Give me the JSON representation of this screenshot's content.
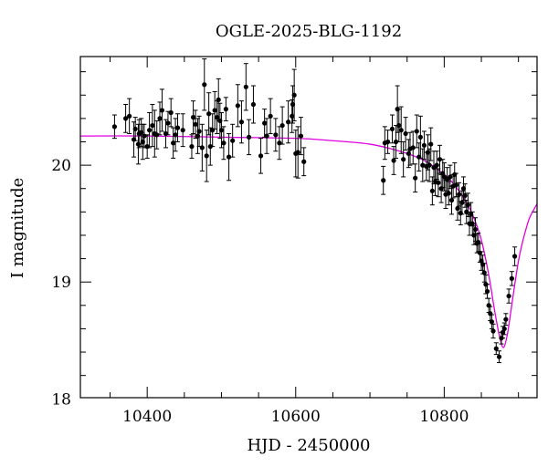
{
  "chart_data": {
    "type": "scatter",
    "title": "OGLE-2025-BLG-1192",
    "xlabel": "HJD - 2450000",
    "ylabel": "I magnitude",
    "xlim": [
      10310,
      10925
    ],
    "ylim": [
      20.93,
      18.01
    ],
    "y_inverted": true,
    "x_ticks": [
      10400,
      10600,
      10800
    ],
    "y_ticks": [
      18,
      19,
      20
    ],
    "x_minor_step": 50,
    "y_minor_step": 0.2,
    "grid": false,
    "legend": "none",
    "point_color": "#000000",
    "model_color": "#e000e0",
    "series": [
      {
        "kind": "points",
        "points": [
          [
            10356,
            20.33,
            0.1
          ],
          [
            10371,
            20.4,
            0.12
          ],
          [
            10376,
            20.42,
            0.15
          ],
          [
            10382,
            20.22,
            0.15
          ],
          [
            10384,
            20.31,
            0.1
          ],
          [
            10388,
            20.18,
            0.17
          ],
          [
            10389,
            20.27,
            0.12
          ],
          [
            10392,
            20.28,
            0.12
          ],
          [
            10394,
            20.2,
            0.15
          ],
          [
            10396,
            20.25,
            0.1
          ],
          [
            10400,
            20.16,
            0.1
          ],
          [
            10403,
            20.3,
            0.15
          ],
          [
            10407,
            20.34,
            0.18
          ],
          [
            10410,
            20.27,
            0.2
          ],
          [
            10413,
            20.26,
            0.12
          ],
          [
            10417,
            20.4,
            0.14
          ],
          [
            10420,
            20.47,
            0.18
          ],
          [
            10425,
            20.27,
            0.12
          ],
          [
            10428,
            20.36,
            0.1
          ],
          [
            10432,
            20.45,
            0.12
          ],
          [
            10435,
            20.19,
            0.13
          ],
          [
            10438,
            20.26,
            0.14
          ],
          [
            10441,
            20.32,
            0.12
          ],
          [
            10448,
            20.3,
            0.14
          ],
          [
            10460,
            20.16,
            0.1
          ],
          [
            10462,
            20.41,
            0.14
          ],
          [
            10465,
            20.35,
            0.12
          ],
          [
            10468,
            20.25,
            0.15
          ],
          [
            10470,
            20.29,
            0.13
          ],
          [
            10474,
            20.15,
            0.2
          ],
          [
            10477,
            20.69,
            0.22
          ],
          [
            10480,
            20.08,
            0.22
          ],
          [
            10483,
            20.44,
            0.18
          ],
          [
            10485,
            20.16,
            0.16
          ],
          [
            10488,
            20.3,
            0.14
          ],
          [
            10491,
            20.47,
            0.16
          ],
          [
            10494,
            20.41,
            0.14
          ],
          [
            10496,
            20.56,
            0.18
          ],
          [
            10498,
            20.38,
            0.15
          ],
          [
            10500,
            20.3,
            0.15
          ],
          [
            10503,
            20.19,
            0.14
          ],
          [
            10506,
            20.48,
            0.1
          ],
          [
            10510,
            20.07,
            0.2
          ],
          [
            10515,
            20.21,
            0.14
          ],
          [
            10522,
            20.51,
            0.18
          ],
          [
            10527,
            20.37,
            0.18
          ],
          [
            10533,
            20.67,
            0.2
          ],
          [
            10537,
            20.24,
            0.15
          ],
          [
            10543,
            20.52,
            0.16
          ],
          [
            10553,
            20.08,
            0.15
          ],
          [
            10558,
            20.36,
            0.12
          ],
          [
            10561,
            20.25,
            0.15
          ],
          [
            10566,
            20.42,
            0.15
          ],
          [
            10573,
            20.26,
            0.14
          ],
          [
            10578,
            20.19,
            0.14
          ],
          [
            10582,
            20.34,
            0.16
          ],
          [
            10590,
            20.37,
            0.18
          ],
          [
            10595,
            20.42,
            0.14
          ],
          [
            10596,
            20.52,
            0.16
          ],
          [
            10598,
            20.6,
            0.22
          ],
          [
            10600,
            20.1,
            0.2
          ],
          [
            10603,
            20.11,
            0.22
          ],
          [
            10607,
            20.25,
            0.16
          ],
          [
            10611,
            20.03,
            0.12
          ],
          [
            10718,
            19.87,
            0.12
          ],
          [
            10720,
            20.19,
            0.14
          ],
          [
            10724,
            20.2,
            0.1
          ],
          [
            10730,
            20.31,
            0.12
          ],
          [
            10732,
            20.04,
            0.12
          ],
          [
            10735,
            20.2,
            0.14
          ],
          [
            10737,
            20.48,
            0.2
          ],
          [
            10739,
            20.34,
            0.14
          ],
          [
            10742,
            20.3,
            0.2
          ],
          [
            10745,
            20.05,
            0.15
          ],
          [
            10748,
            20.27,
            0.14
          ],
          [
            10752,
            20.1,
            0.12
          ],
          [
            10754,
            20.14,
            0.14
          ],
          [
            10758,
            20.15,
            0.14
          ],
          [
            10761,
            19.89,
            0.12
          ],
          [
            10763,
            20.29,
            0.14
          ],
          [
            10766,
            20.07,
            0.12
          ],
          [
            10768,
            20.24,
            0.18
          ],
          [
            10771,
            20.0,
            0.14
          ],
          [
            10773,
            20.17,
            0.12
          ],
          [
            10776,
            19.99,
            0.12
          ],
          [
            10778,
            20.11,
            0.15
          ],
          [
            10780,
            20.0,
            0.14
          ],
          [
            10782,
            20.18,
            0.14
          ],
          [
            10784,
            19.78,
            0.12
          ],
          [
            10786,
            19.98,
            0.14
          ],
          [
            10788,
            19.86,
            0.12
          ],
          [
            10790,
            20.0,
            0.12
          ],
          [
            10792,
            19.85,
            0.12
          ],
          [
            10794,
            20.05,
            0.12
          ],
          [
            10796,
            19.8,
            0.12
          ],
          [
            10798,
            19.93,
            0.12
          ],
          [
            10800,
            19.9,
            0.12
          ],
          [
            10802,
            19.75,
            0.12
          ],
          [
            10804,
            19.88,
            0.1
          ],
          [
            10806,
            19.76,
            0.1
          ],
          [
            10808,
            19.9,
            0.1
          ],
          [
            10810,
            19.7,
            0.12
          ],
          [
            10812,
            19.82,
            0.1
          ],
          [
            10814,
            19.92,
            0.1
          ],
          [
            10816,
            19.83,
            0.1
          ],
          [
            10818,
            19.63,
            0.1
          ],
          [
            10820,
            19.75,
            0.1
          ],
          [
            10822,
            19.59,
            0.1
          ],
          [
            10824,
            19.68,
            0.1
          ],
          [
            10826,
            19.8,
            0.1
          ],
          [
            10828,
            19.74,
            0.1
          ],
          [
            10830,
            19.6,
            0.1
          ],
          [
            10832,
            19.66,
            0.1
          ],
          [
            10834,
            19.5,
            0.1
          ],
          [
            10836,
            19.58,
            0.1
          ],
          [
            10838,
            19.5,
            0.1
          ],
          [
            10840,
            19.4,
            0.08
          ],
          [
            10842,
            19.45,
            0.1
          ],
          [
            10844,
            19.33,
            0.08
          ],
          [
            10846,
            19.34,
            0.08
          ],
          [
            10848,
            19.25,
            0.08
          ],
          [
            10850,
            19.18,
            0.08
          ],
          [
            10852,
            19.15,
            0.08
          ],
          [
            10854,
            19.08,
            0.08
          ],
          [
            10856,
            18.98,
            0.08
          ],
          [
            10858,
            18.92,
            0.06
          ],
          [
            10860,
            18.8,
            0.06
          ],
          [
            10862,
            18.73,
            0.06
          ],
          [
            10864,
            18.66,
            0.06
          ],
          [
            10866,
            18.58,
            0.06
          ],
          [
            10870,
            18.43,
            0.05
          ],
          [
            10874,
            18.36,
            0.05
          ],
          [
            10877,
            18.52,
            0.05
          ],
          [
            10879,
            18.57,
            0.05
          ],
          [
            10881,
            18.6,
            0.05
          ],
          [
            10883,
            18.68,
            0.05
          ],
          [
            10887,
            18.88,
            0.06
          ],
          [
            10891,
            19.03,
            0.06
          ],
          [
            10895,
            19.22,
            0.08
          ]
        ]
      },
      {
        "kind": "model",
        "x": [
          10310,
          10400,
          10500,
          10600,
          10650,
          10700,
          10740,
          10770,
          10790,
          10810,
          10830,
          10840,
          10850,
          10860,
          10868,
          10875,
          10880,
          10885,
          10890,
          10895,
          10900,
          10905,
          10910,
          10915,
          10925
        ],
        "y": [
          20.25,
          20.25,
          20.24,
          20.23,
          20.21,
          20.18,
          20.12,
          20.05,
          19.97,
          19.86,
          19.68,
          19.55,
          19.36,
          19.06,
          18.75,
          18.52,
          18.44,
          18.55,
          18.76,
          18.98,
          19.18,
          19.33,
          19.45,
          19.55,
          19.67
        ]
      }
    ]
  }
}
